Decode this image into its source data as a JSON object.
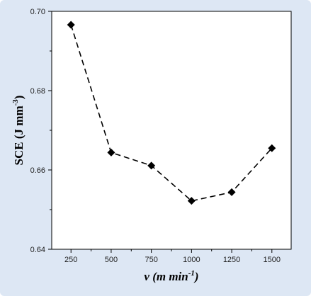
{
  "chart_data": {
    "type": "line",
    "marker": "diamond",
    "line_style": "dashed",
    "colors": {
      "background": "#dde7f4",
      "plot_background": "#ffffff",
      "series": "#000000"
    },
    "x_ticks": [
      250,
      500,
      750,
      1000,
      1250,
      1500
    ],
    "x_tick_labels": [
      "250",
      "500",
      "750",
      "1000",
      "1250",
      "1500"
    ],
    "xlim": [
      130,
      1620
    ],
    "y_ticks": [
      0.64,
      0.66,
      0.68,
      0.7
    ],
    "y_tick_labels": [
      "0.64",
      "0.66",
      "0.68",
      "0.70"
    ],
    "ylim": [
      0.64,
      0.7
    ],
    "xlabel": {
      "var": "v",
      "rest": " (m min",
      "sup": "-1",
      "close": ")"
    },
    "ylabel": {
      "text": "SCE (J mm",
      "sup": "-3",
      "close": ")"
    },
    "grid": false,
    "series": [
      {
        "x": [
          250,
          500,
          750,
          1000,
          1250,
          1500
        ],
        "y": [
          0.6966,
          0.6644,
          0.6611,
          0.6522,
          0.6544,
          0.6655
        ]
      }
    ]
  }
}
